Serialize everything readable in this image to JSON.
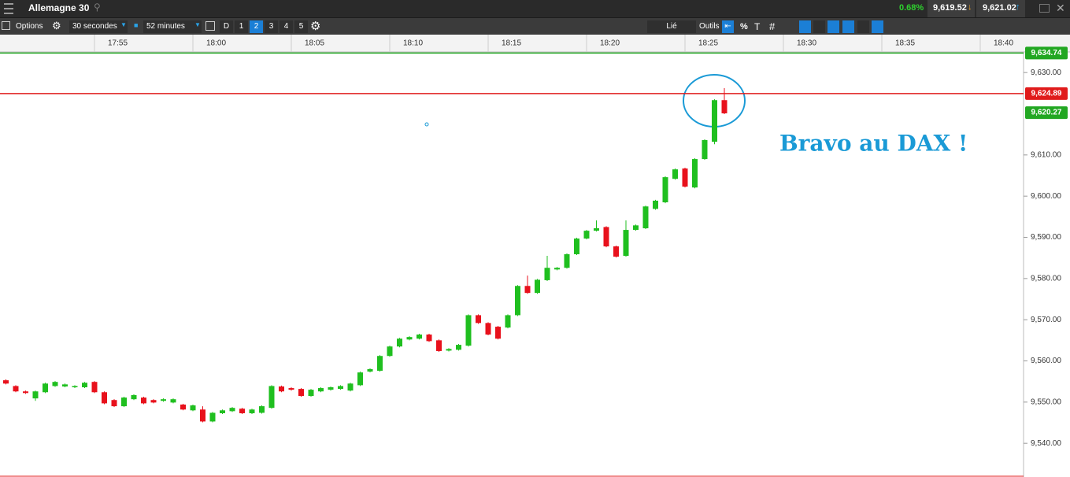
{
  "header": {
    "title": "Allemagne 30",
    "change": "0.68%",
    "sell": "9,619.52",
    "buy": "9,621.02"
  },
  "toolbar": {
    "options": "Options",
    "interval": "30 secondes",
    "duration": "52 minutes",
    "periods": [
      "D",
      "1",
      "2",
      "3",
      "4",
      "5"
    ],
    "link": "Lié",
    "tools": "Outils",
    "percent": "%"
  },
  "chart_data": {
    "type": "candlestick",
    "annotation": "Bravo au DAX !",
    "up_color": "#1fbf1f",
    "down_color": "#e8111c",
    "x": [
      1070.5,
      1071,
      1071.5,
      1072,
      1072.5,
      1073,
      1073.5,
      1074,
      1074.5,
      1075,
      1075.5,
      1076,
      1076.5,
      1077,
      1077.5,
      1078,
      1078.5,
      1079,
      1079.5,
      1080,
      1080.5,
      1081,
      1081.5,
      1082,
      1082.5,
      1083,
      1083.5,
      1084,
      1084.5,
      1085,
      1085.5,
      1086,
      1086.5,
      1087,
      1087.5,
      1088,
      1088.5,
      1089,
      1089.5,
      1090,
      1090.5,
      1091,
      1091.5,
      1092,
      1092.5,
      1093,
      1093.5,
      1094,
      1094.5,
      1095,
      1095.5,
      1096,
      1096.5,
      1097,
      1097.5,
      1098,
      1098.5,
      1099,
      1099.5,
      1100,
      1100.5,
      1101,
      1101.5,
      1102,
      1102.5,
      1103,
      1103.5,
      1104,
      1104.5,
      1105,
      1105.5,
      1106,
      1106.5,
      1107
    ],
    "open": [
      9555.3,
      9553.9,
      9552.6,
      9550.9,
      9552.4,
      9553.9,
      9553.8,
      9553.6,
      9553.6,
      9554.9,
      9552.4,
      9550.5,
      9549.0,
      9550.7,
      9551.1,
      9550.5,
      9550.3,
      9549.9,
      9549.4,
      9548.0,
      9548.2,
      9545.3,
      9547.3,
      9547.8,
      9548.4,
      9547.3,
      9547.4,
      9548.6,
      9553.8,
      9553.4,
      9553.2,
      9551.5,
      9552.6,
      9553.0,
      9553.2,
      9552.8,
      9554.1,
      9557.4,
      9557.6,
      9561.2,
      9563.5,
      9565.2,
      9565.4,
      9566.4,
      9565.0,
      9562.5,
      9562.7,
      9563.7,
      9571.1,
      9569.2,
      9568.3,
      9568.1,
      9571.1,
      9578.2,
      9576.5,
      9579.6,
      9582.2,
      9582.6,
      9585.9,
      9589.7,
      9591.6,
      9592.5,
      9587.8,
      9585.5,
      9591.8,
      9592.2,
      9596.9,
      9598.5,
      9604.2,
      9606.7,
      9602.1,
      9609.0,
      9613.2,
      9623.3
    ],
    "high": [
      9555.5,
      9554.1,
      9552.8,
      9552.8,
      9554.7,
      9555.1,
      9554.5,
      9554.1,
      9554.9,
      9555.1,
      9552.6,
      9550.7,
      9551.3,
      9551.9,
      9551.3,
      9550.7,
      9550.9,
      9550.9,
      9549.6,
      9549.4,
      9549.0,
      9547.6,
      9548.2,
      9548.8,
      9548.6,
      9548.4,
      9549.2,
      9554.1,
      9554.0,
      9553.6,
      9553.4,
      9553.2,
      9553.6,
      9553.8,
      9554.1,
      9554.7,
      9557.4,
      9558.2,
      9561.4,
      9563.7,
      9565.6,
      9566.0,
      9566.6,
      9566.6,
      9565.2,
      9563.1,
      9564.1,
      9571.3,
      9571.3,
      9569.4,
      9568.5,
      9571.3,
      9578.4,
      9580.7,
      9579.9,
      9585.5,
      9582.8,
      9586.1,
      9589.9,
      9591.8,
      9594.1,
      9592.7,
      9588.0,
      9594.1,
      9593.1,
      9597.7,
      9599.1,
      9604.8,
      9606.7,
      9606.9,
      9609.2,
      9613.8,
      9623.5,
      9626.2
    ],
    "low": [
      9554.3,
      9552.4,
      9552.0,
      9550.3,
      9552.2,
      9553.7,
      9553.6,
      9553.4,
      9553.4,
      9552.2,
      9549.5,
      9548.8,
      9548.8,
      9550.5,
      9549.5,
      9549.7,
      9550.1,
      9549.7,
      9548.0,
      9547.8,
      9545.1,
      9545.1,
      9547.1,
      9547.6,
      9547.1,
      9547.1,
      9547.2,
      9548.4,
      9552.4,
      9552.8,
      9551.3,
      9551.3,
      9552.4,
      9552.8,
      9553.0,
      9552.6,
      9553.9,
      9557.2,
      9557.4,
      9561.0,
      9563.3,
      9565.0,
      9565.2,
      9564.6,
      9562.2,
      9562.3,
      9562.5,
      9563.5,
      9569.0,
      9566.2,
      9565.2,
      9567.9,
      9570.9,
      9576.3,
      9576.3,
      9579.4,
      9582.0,
      9582.4,
      9585.7,
      9589.5,
      9591.4,
      9587.6,
      9585.1,
      9585.3,
      9591.6,
      9592.0,
      9596.7,
      9598.3,
      9604.0,
      9602.1,
      9601.9,
      9608.8,
      9612.6,
      9619.9
    ],
    "close": [
      9554.5,
      9552.6,
      9552.2,
      9552.6,
      9554.5,
      9554.9,
      9554.3,
      9553.9,
      9554.7,
      9552.4,
      9549.7,
      9549.0,
      9551.1,
      9551.7,
      9549.7,
      9549.9,
      9550.7,
      9550.7,
      9548.2,
      9549.2,
      9545.3,
      9547.4,
      9548.0,
      9548.6,
      9547.3,
      9548.2,
      9549.0,
      9553.9,
      9552.6,
      9553.0,
      9551.5,
      9553.0,
      9553.4,
      9553.6,
      9553.9,
      9554.5,
      9557.2,
      9558.0,
      9561.2,
      9563.5,
      9565.4,
      9565.8,
      9566.4,
      9564.8,
      9562.4,
      9562.9,
      9563.9,
      9571.1,
      9569.2,
      9566.4,
      9565.4,
      9571.1,
      9578.2,
      9576.5,
      9579.7,
      9582.6,
      9582.6,
      9585.9,
      9589.7,
      9591.6,
      9592.2,
      9587.8,
      9585.3,
      9591.8,
      9592.9,
      9597.5,
      9598.9,
      9604.6,
      9606.5,
      9602.3,
      9609.0,
      9613.6,
      9623.3,
      9620.1
    ],
    "xlim": [
      1070.2,
      1122.2
    ],
    "xticks": [
      {
        "value": 1075,
        "label": "17:55"
      },
      {
        "value": 1080,
        "label": "18:00"
      },
      {
        "value": 1085,
        "label": "18:05"
      },
      {
        "value": 1090,
        "label": "18:10"
      },
      {
        "value": 1095,
        "label": "18:15"
      },
      {
        "value": 1100,
        "label": "18:20"
      },
      {
        "value": 1105,
        "label": "18:25"
      },
      {
        "value": 1110,
        "label": "18:30"
      },
      {
        "value": 1115,
        "label": "18:35"
      },
      {
        "value": 1120,
        "label": "18:40"
      }
    ],
    "ylim": [
      9532.2,
      9635.0
    ],
    "yticks": [
      {
        "value": 9630,
        "label": "9,630.00"
      },
      {
        "value": 9610,
        "label": "9,610.00"
      },
      {
        "value": 9600,
        "label": "9,600.00"
      },
      {
        "value": 9590,
        "label": "9,590.00"
      },
      {
        "value": 9580,
        "label": "9,580.00"
      },
      {
        "value": 9570,
        "label": "9,570.00"
      },
      {
        "value": 9560,
        "label": "9,560.00"
      },
      {
        "value": 9550,
        "label": "9,550.00"
      },
      {
        "value": 9540,
        "label": "9,540.00"
      }
    ],
    "price_lines": [
      {
        "value": 9634.74,
        "label": "9,634.74",
        "color": "#22a722"
      },
      {
        "value": 9624.89,
        "label": "9,624.89",
        "color": "#e01b1b"
      }
    ],
    "last_price": {
      "value": 9620.27,
      "label": "9,620.27",
      "color": "#22a722"
    }
  }
}
